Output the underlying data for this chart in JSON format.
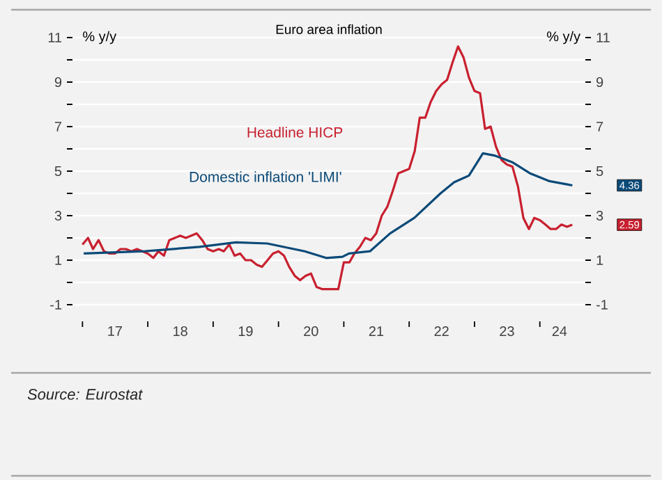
{
  "chart_data": {
    "type": "line",
    "title": "Euro area inflation",
    "ylabel": "% y/y",
    "y2label": "% y/y",
    "x": [
      "2017-01",
      "2017-02",
      "2017-03",
      "2017-04",
      "2017-05",
      "2017-06",
      "2017-07",
      "2017-08",
      "2017-09",
      "2017-10",
      "2017-11",
      "2017-12",
      "2018-01",
      "2018-02",
      "2018-03",
      "2018-04",
      "2018-05",
      "2018-06",
      "2018-07",
      "2018-08",
      "2018-09",
      "2018-10",
      "2018-11",
      "2018-12",
      "2019-01",
      "2019-02",
      "2019-03",
      "2019-04",
      "2019-05",
      "2019-06",
      "2019-07",
      "2019-08",
      "2019-09",
      "2019-10",
      "2019-11",
      "2019-12",
      "2020-01",
      "2020-02",
      "2020-03",
      "2020-04",
      "2020-05",
      "2020-06",
      "2020-07",
      "2020-08",
      "2020-09",
      "2020-10",
      "2020-11",
      "2020-12",
      "2021-01",
      "2021-02",
      "2021-03",
      "2021-04",
      "2021-05",
      "2021-06",
      "2021-07",
      "2021-08",
      "2021-09",
      "2021-10",
      "2021-11",
      "2021-12",
      "2022-01",
      "2022-02",
      "2022-03",
      "2022-04",
      "2022-05",
      "2022-06",
      "2022-07",
      "2022-08",
      "2022-09",
      "2022-10",
      "2022-11",
      "2022-12",
      "2023-01",
      "2023-02",
      "2023-03",
      "2023-04",
      "2023-05",
      "2023-06",
      "2023-07",
      "2023-08",
      "2023-09",
      "2023-10",
      "2023-11",
      "2023-12",
      "2024-01",
      "2024-02",
      "2024-03",
      "2024-04",
      "2024-05",
      "2024-06",
      "2024-07"
    ],
    "series": [
      {
        "name": "Headline HICP",
        "color": "#c8202f",
        "values": [
          1.7,
          2.0,
          1.5,
          1.9,
          1.4,
          1.3,
          1.3,
          1.5,
          1.5,
          1.4,
          1.5,
          1.4,
          1.3,
          1.1,
          1.4,
          1.2,
          1.9,
          2.0,
          2.1,
          2.0,
          2.1,
          2.2,
          1.9,
          1.5,
          1.4,
          1.5,
          1.4,
          1.7,
          1.2,
          1.3,
          1.0,
          1.0,
          0.8,
          0.7,
          1.0,
          1.3,
          1.4,
          1.2,
          0.7,
          0.3,
          0.1,
          0.3,
          0.4,
          -0.2,
          -0.3,
          -0.3,
          -0.3,
          -0.3,
          0.9,
          0.9,
          1.3,
          1.6,
          2.0,
          1.9,
          2.2,
          3.0,
          3.4,
          4.1,
          4.9,
          5.0,
          5.1,
          5.9,
          7.4,
          7.4,
          8.1,
          8.6,
          8.9,
          9.1,
          9.9,
          10.6,
          10.1,
          9.2,
          8.6,
          8.5,
          6.9,
          7.0,
          6.1,
          5.5,
          5.3,
          5.2,
          4.3,
          2.9,
          2.4,
          2.9,
          2.8,
          2.6,
          2.4,
          2.4,
          2.6,
          2.5,
          2.59
        ]
      },
      {
        "name": "Domestic inflation 'LIMI'",
        "color": "#0b4a78",
        "x": [
          "2017-01-08",
          "2017-12-17",
          "2018-10-16",
          "2019-05-08",
          "2019-10-30",
          "2020-05-27",
          "2020-09-24",
          "2020-12-24",
          "2021-01-30",
          "2021-05-27",
          "2021-09-16",
          "2022-01-30",
          "2022-06-25",
          "2022-09-09",
          "2022-12-01",
          "2023-02-17",
          "2023-04-23",
          "2023-07-31",
          "2023-11-07",
          "2024-02-24",
          "2024-06-03",
          "2024-07-01"
        ],
        "values": [
          1.3,
          1.4,
          1.6,
          1.8,
          1.75,
          1.4,
          1.1,
          1.15,
          1.3,
          1.4,
          2.2,
          2.9,
          4.0,
          4.5,
          4.8,
          5.8,
          5.7,
          5.4,
          4.9,
          4.55,
          4.4,
          4.36
        ]
      }
    ],
    "xlim": [
      "2016-11-06",
      "2024-09-12"
    ],
    "xticks": [
      {
        "value": "2017-01",
        "label": null
      },
      {
        "value": "2017-07",
        "label": "17"
      },
      {
        "value": "2018-01",
        "label": null
      },
      {
        "value": "2018-07",
        "label": "18"
      },
      {
        "value": "2019-01",
        "label": null
      },
      {
        "value": "2019-07",
        "label": "19"
      },
      {
        "value": "2020-01",
        "label": null
      },
      {
        "value": "2020-07",
        "label": "20"
      },
      {
        "value": "2021-01",
        "label": null
      },
      {
        "value": "2021-07",
        "label": "21"
      },
      {
        "value": "2022-01",
        "label": null
      },
      {
        "value": "2022-07",
        "label": "22"
      },
      {
        "value": "2023-01",
        "label": null
      },
      {
        "value": "2023-07",
        "label": "23"
      },
      {
        "value": "2024-01",
        "label": null
      },
      {
        "value": "2024-04-20",
        "label": "24"
      }
    ],
    "ylim": [
      -1,
      11
    ],
    "yticks": [
      -1,
      {
        "value": 0,
        "label": null
      },
      1,
      {
        "value": 2,
        "label": null
      },
      3,
      {
        "value": 4,
        "label": null
      },
      5,
      {
        "value": 6,
        "label": null
      },
      7,
      {
        "value": 8,
        "label": null
      },
      9,
      {
        "value": 10,
        "label": null
      },
      11
    ],
    "y2lim": [
      -1,
      11
    ],
    "y2ticks": [
      -1,
      {
        "value": 0,
        "label": null
      },
      1,
      {
        "value": 2,
        "label": null
      },
      3,
      {
        "value": 4,
        "label": null
      },
      5,
      {
        "value": 6,
        "label": null
      },
      7,
      {
        "value": 8,
        "label": null
      },
      9,
      {
        "value": 10,
        "label": null
      },
      11
    ],
    "grid": "y",
    "marker": "none",
    "line_style": "solid",
    "annotations": [
      "2.59",
      "4.36",
      "Source: Eurostat"
    ]
  }
}
